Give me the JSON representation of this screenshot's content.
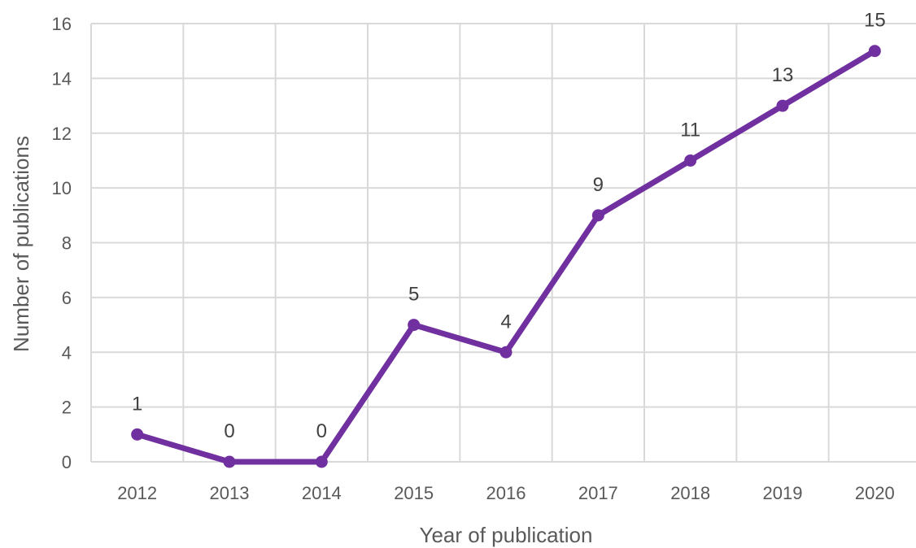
{
  "chart_data": {
    "type": "line",
    "x": [
      "2012",
      "2013",
      "2014",
      "2015",
      "2016",
      "2017",
      "2018",
      "2019",
      "2020"
    ],
    "series": [
      {
        "values": [
          1,
          0,
          0,
          5,
          4,
          9,
          11,
          13,
          15
        ]
      }
    ],
    "data_labels": [
      "1",
      "0",
      "0",
      "5",
      "4",
      "9",
      "11",
      "13",
      "15"
    ],
    "xlabel": "Year of publication",
    "ylabel": "Number of publications",
    "ylim": [
      0,
      16
    ],
    "yticks": [
      "0",
      "2",
      "4",
      "6",
      "8",
      "10",
      "12",
      "14",
      "16"
    ],
    "grid": true,
    "legend": "none",
    "colors": {
      "line": "#7030a0",
      "grid": "#d9d9d9",
      "text": "#595959"
    }
  }
}
